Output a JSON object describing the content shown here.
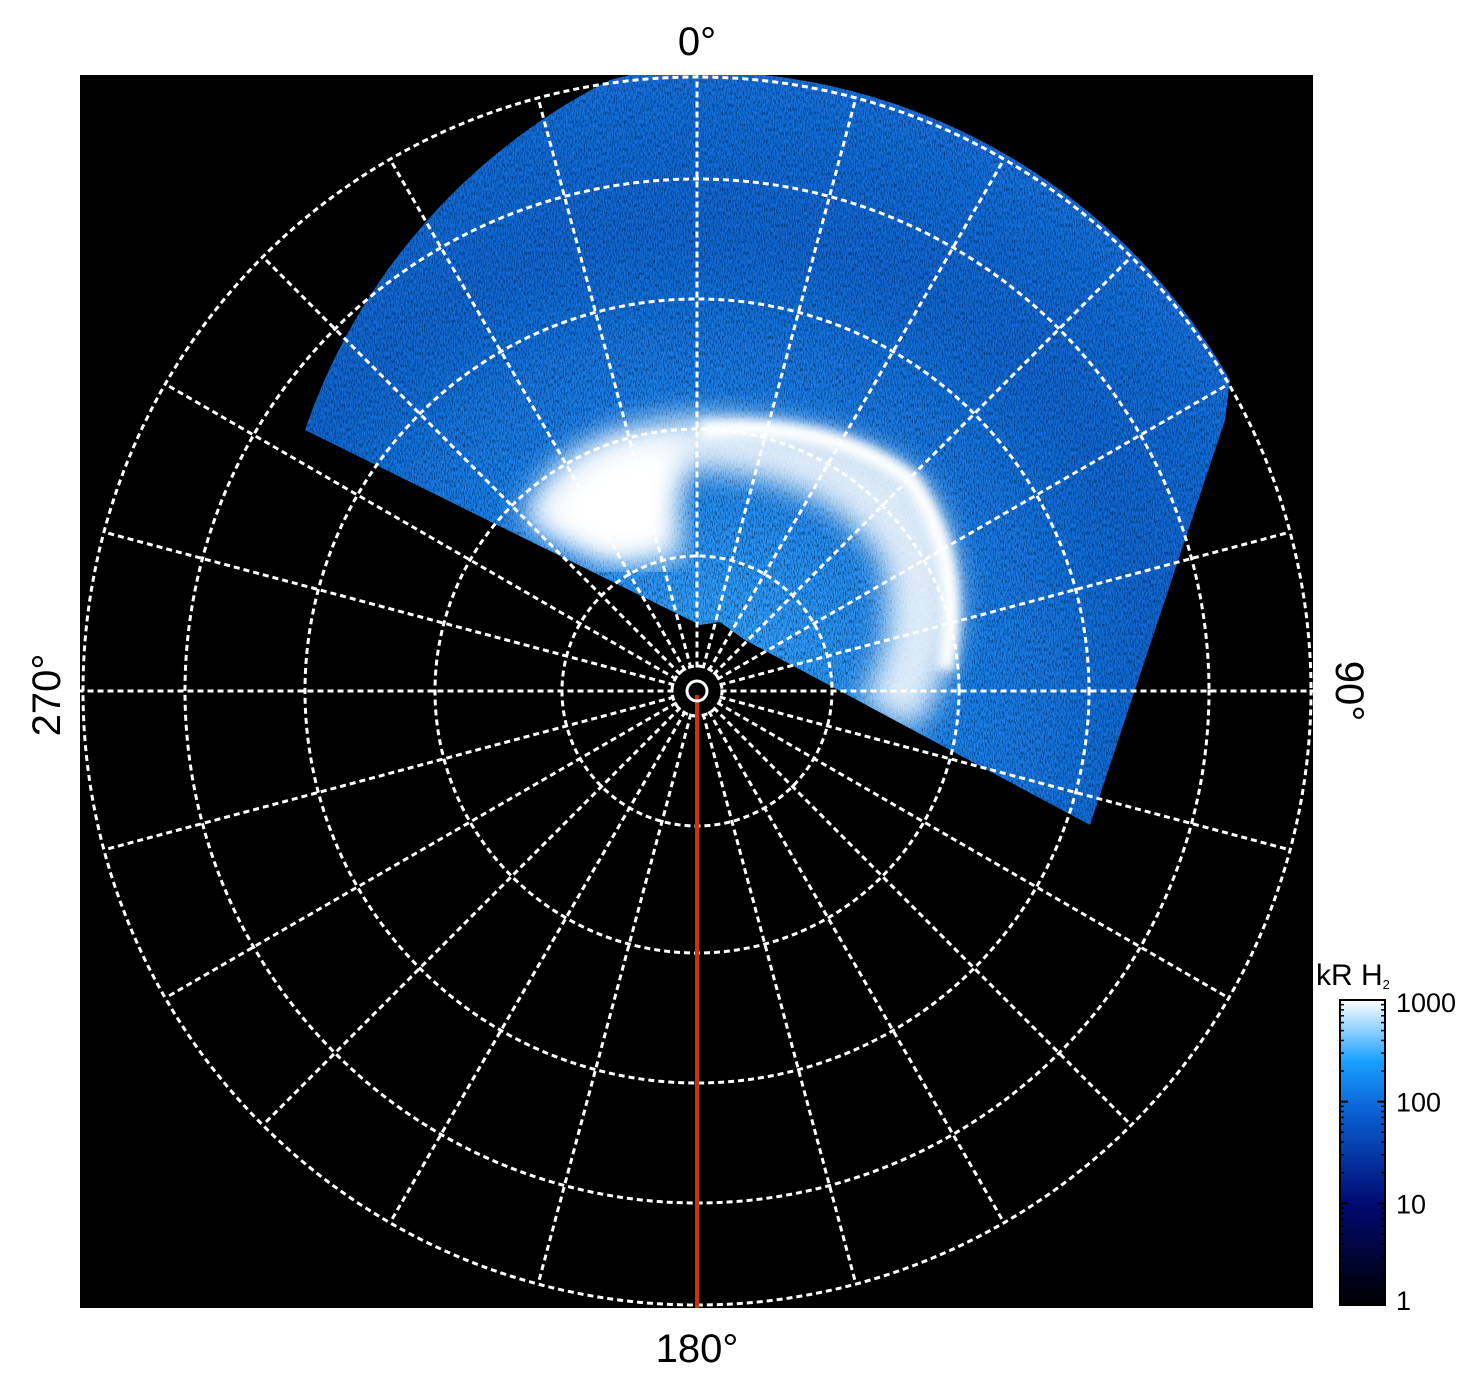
{
  "chart_data": {
    "type": "heatmap",
    "projection": "polar",
    "title": "",
    "angle_labels": [
      {
        "angle": 0,
        "label": "0°"
      },
      {
        "angle": 90,
        "label": "90°"
      },
      {
        "angle": 180,
        "label": "180°"
      },
      {
        "angle": 270,
        "label": "270°"
      }
    ],
    "meridian_spacing_deg": 15,
    "latitude_circles": 5,
    "grid": true,
    "grid_style": "dotted white",
    "highlighted_meridian_deg": 180,
    "highlighted_meridian_color": "#cc3300",
    "colorbar": {
      "label": "kR H",
      "label_subscript": "2",
      "scale": "log",
      "range": [
        1,
        1000
      ],
      "ticks": [
        {
          "value": 1,
          "label": "1"
        },
        {
          "value": 10,
          "label": "10"
        },
        {
          "value": 100,
          "label": "100"
        },
        {
          "value": 1000,
          "label": "1000"
        }
      ],
      "colors": [
        "#000000",
        "#000a70",
        "#0a5cd0",
        "#1aa0ff",
        "#ffffff"
      ],
      "placement": "bottom-right"
    }
  }
}
